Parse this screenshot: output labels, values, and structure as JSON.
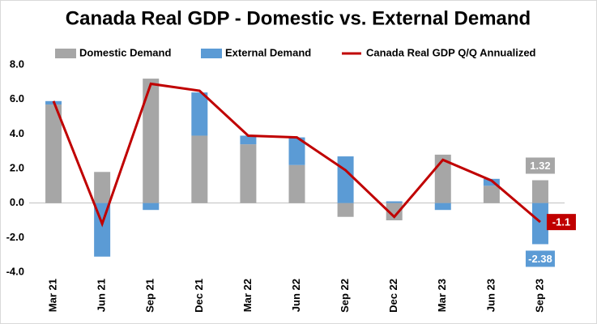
{
  "chart_data": {
    "type": "bar-line",
    "title": "Canada Real GDP - Domestic vs. External Demand",
    "categories": [
      "Mar 21",
      "Jun 21",
      "Sep 21",
      "Dec 21",
      "Mar 22",
      "Jun 22",
      "Sep 22",
      "Dec 22",
      "Mar 23",
      "Jun 23",
      "Sep 23"
    ],
    "series": [
      {
        "name": "Domestic Demand",
        "color": "#a6a6a6",
        "type": "bar",
        "values": [
          5.7,
          1.8,
          7.2,
          3.9,
          3.4,
          2.2,
          -0.8,
          -1.0,
          2.8,
          1.0,
          1.32
        ]
      },
      {
        "name": "External Demand",
        "color": "#5b9bd5",
        "type": "bar",
        "values": [
          0.2,
          -3.1,
          -0.4,
          2.5,
          0.5,
          1.6,
          2.7,
          0.1,
          -0.4,
          0.4,
          -2.38
        ]
      },
      {
        "name": "Canada Real GDP Q/Q Annualized",
        "color": "#c00000",
        "type": "line",
        "values": [
          5.9,
          -1.2,
          6.9,
          6.5,
          3.9,
          3.8,
          1.9,
          -0.8,
          2.5,
          1.3,
          -1.1
        ]
      }
    ],
    "ylim": [
      -4,
      8
    ],
    "yticks": [
      {
        "value": -4,
        "label": "-4.0"
      },
      {
        "value": -2,
        "label": "-2.0"
      },
      {
        "value": 0,
        "label": "0.0"
      },
      {
        "value": 2,
        "label": "2.0"
      },
      {
        "value": 4,
        "label": "4.0"
      },
      {
        "value": 6,
        "label": "6.0"
      },
      {
        "value": 8,
        "label": "8.0"
      }
    ],
    "grid": false,
    "legend": "top"
  }
}
